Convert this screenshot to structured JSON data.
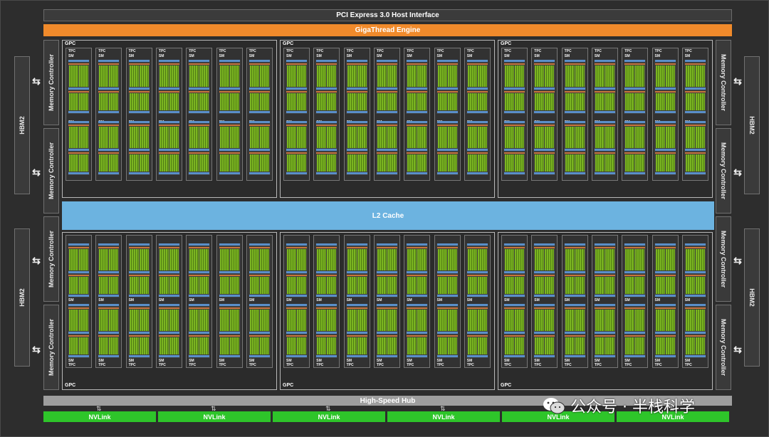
{
  "top_bus": {
    "pcie_label": "PCI Express 3.0 Host Interface",
    "gigathread_label": "GigaThread Engine"
  },
  "memory": {
    "hbm_label": "HBM2",
    "controller_label": "Memory Controller"
  },
  "gpc_label": "GPC",
  "tpc_label": "TPC",
  "sm_label": "SM",
  "l2_label": "L2 Cache",
  "hub_label": "High-Speed Hub",
  "nvlinks": [
    "NVLink",
    "NVLink",
    "NVLink",
    "NVLink",
    "NVLink",
    "NVLink"
  ],
  "watermark": {
    "text": "公众号 · 半栈科学",
    "icon": "wechat-logo"
  },
  "colors": {
    "gigathread": "#f08a2b",
    "l2_cache": "#6cb3e0",
    "nvlink": "#2ec52a",
    "cuda_core": "#7bb521",
    "hub": "#9e9e9e"
  }
}
